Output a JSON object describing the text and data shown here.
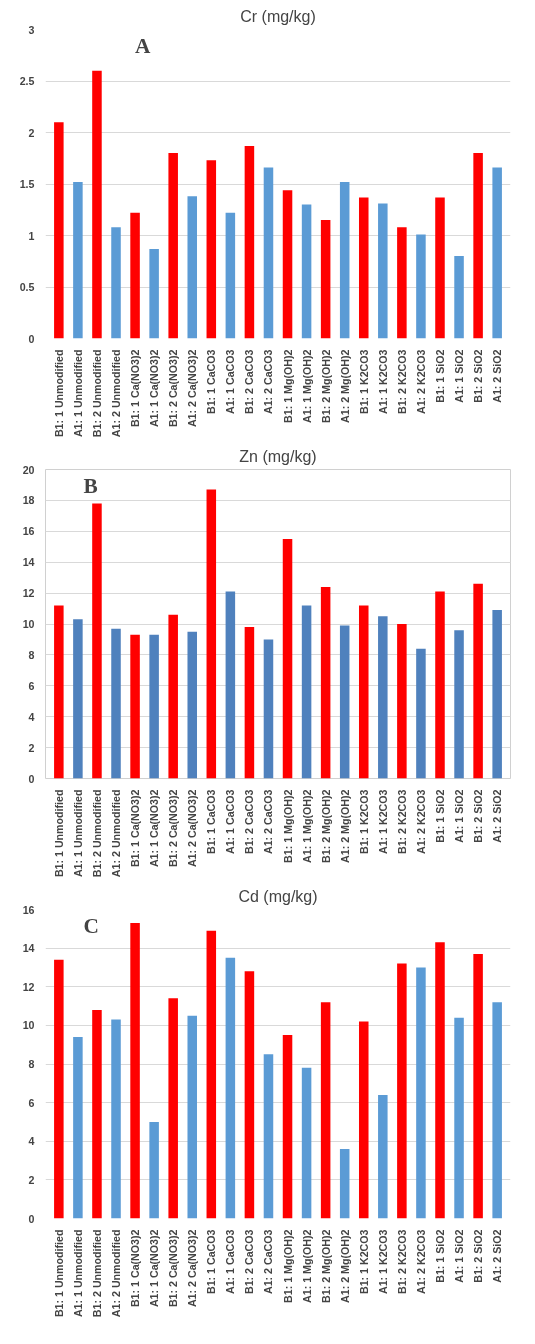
{
  "chart_data": [
    {
      "type": "bar",
      "title": "Cr (mg/kg)",
      "annotations": [
        "A"
      ],
      "categories": [
        "B1: 1 Unmodified",
        "A1: 1 Unmodified",
        "B1: 2 Unmodified",
        "A1: 2 Unmodified",
        "B1: 1 Ca(NO3)2",
        "A1: 1 Ca(NO3)2",
        "B1: 2 Ca(NO3)2",
        "A1: 2 Ca(NO3)2",
        "B1: 1 CaCO3",
        "A1: 1 CaCO3",
        "B1: 2 CaCO3",
        "A1: 2 CaCO3",
        "B1: 1 Mg(OH)2",
        "A1: 1 Mg(OH)2",
        "B1: 2 Mg(OH)2",
        "A1: 2 Mg(OH)2",
        "B1: 1 K2CO3",
        "A1: 1 K2CO3",
        "B1: 2 K2CO3",
        "A1: 2 K2CO3",
        "B1: 1 SiO2",
        "A1: 1 SiO2",
        "B1: 2 SiO2",
        "A1: 2 SiO2"
      ],
      "values": [
        2.1,
        1.52,
        2.6,
        1.08,
        1.22,
        0.87,
        1.8,
        1.38,
        1.73,
        1.22,
        1.87,
        1.66,
        1.44,
        1.3,
        1.15,
        1.52,
        1.37,
        1.31,
        1.08,
        1.01,
        1.37,
        0.8,
        1.8,
        1.66
      ],
      "colors": [
        "#ff0000",
        "#5b9bd5",
        "#ff0000",
        "#5b9bd5",
        "#ff0000",
        "#5b9bd5",
        "#ff0000",
        "#5b9bd5",
        "#ff0000",
        "#5b9bd5",
        "#ff0000",
        "#5b9bd5",
        "#ff0000",
        "#5b9bd5",
        "#ff0000",
        "#5b9bd5",
        "#ff0000",
        "#5b9bd5",
        "#ff0000",
        "#5b9bd5",
        "#ff0000",
        "#5b9bd5",
        "#ff0000",
        "#5b9bd5"
      ],
      "ylim": [
        0,
        3
      ],
      "yticks": [
        0,
        0.5,
        1,
        1.5,
        2,
        2.5,
        3
      ],
      "grid": "y"
    },
    {
      "type": "bar",
      "title": "Zn (mg/kg)",
      "annotations": [
        "B"
      ],
      "categories": [
        "B1: 1 Unmodified",
        "A1: 1 Unmodified",
        "B1: 2 Unmodified",
        "A1: 2 Unmodified",
        "B1: 1 Ca(NO3)2",
        "A1: 1 Ca(NO3)2",
        "B1: 2 Ca(NO3)2",
        "A1: 2 Ca(NO3)2",
        "B1: 1 CaCO3",
        "A1: 1 CaCO3",
        "B1: 2 CaCO3",
        "A1: 2 CaCO3",
        "B1: 1 Mg(OH)2",
        "A1: 1 Mg(OH)2",
        "B1: 2 Mg(OH)2",
        "A1: 2 Mg(OH)2",
        "B1: 1 K2CO3",
        "A1: 1 K2CO3",
        "B1: 2 K2CO3",
        "A1: 2 K2CO3",
        "B1: 1 SiO2",
        "A1: 1 SiO2",
        "B1: 2 SiO2",
        "A1: 2 SiO2"
      ],
      "values": [
        11.2,
        10.3,
        17.8,
        9.7,
        9.3,
        9.3,
        10.6,
        9.5,
        18.7,
        12.1,
        9.8,
        9.0,
        15.5,
        11.2,
        12.4,
        9.9,
        11.2,
        10.5,
        10.0,
        8.4,
        12.1,
        9.6,
        12.6,
        10.9
      ],
      "colors": [
        "#ff0000",
        "#4f81bd",
        "#ff0000",
        "#4f81bd",
        "#ff0000",
        "#4f81bd",
        "#ff0000",
        "#4f81bd",
        "#ff0000",
        "#4f81bd",
        "#ff0000",
        "#4f81bd",
        "#ff0000",
        "#4f81bd",
        "#ff0000",
        "#4f81bd",
        "#ff0000",
        "#4f81bd",
        "#ff0000",
        "#4f81bd",
        "#ff0000",
        "#4f81bd",
        "#ff0000",
        "#4f81bd"
      ],
      "ylim": [
        0,
        20
      ],
      "yticks": [
        0,
        2,
        4,
        6,
        8,
        10,
        12,
        14,
        16,
        18,
        20
      ],
      "grid": "y"
    },
    {
      "type": "bar",
      "title": "Cd (mg/kg)",
      "annotations": [
        "C"
      ],
      "categories": [
        "B1: 1 Unmodified",
        "A1: 1 Unmodified",
        "B1: 2 Unmodified",
        "A1: 2 Unmodified",
        "B1: 1 Ca(NO3)2",
        "A1: 1 Ca(NO3)2",
        "B1: 2 Ca(NO3)2",
        "A1: 2 Ca(NO3)2",
        "B1: 1 CaCO3",
        "A1: 1 CaCO3",
        "B1: 2 CaCO3",
        "A1: 2 CaCO3",
        "B1: 1 Mg(OH)2",
        "A1: 1 Mg(OH)2",
        "B1: 2 Mg(OH)2",
        "A1: 2 Mg(OH)2",
        "B1: 1 K2CO3",
        "A1: 1 K2CO3",
        "B1: 2 K2CO3",
        "A1: 2 K2CO3",
        "B1: 1 SiO2",
        "A1: 1 SiO2",
        "B1: 2 SiO2",
        "A1: 2 SiO2"
      ],
      "values": [
        13.4,
        9.4,
        10.8,
        10.3,
        15.3,
        5.0,
        11.4,
        10.5,
        14.9,
        13.5,
        12.8,
        8.5,
        9.5,
        7.8,
        11.2,
        3.6,
        10.2,
        6.4,
        13.2,
        13.0,
        14.3,
        10.4,
        13.7,
        11.2
      ],
      "colors": [
        "#ff0000",
        "#5b9bd5",
        "#ff0000",
        "#5b9bd5",
        "#ff0000",
        "#5b9bd5",
        "#ff0000",
        "#5b9bd5",
        "#ff0000",
        "#5b9bd5",
        "#ff0000",
        "#5b9bd5",
        "#ff0000",
        "#5b9bd5",
        "#ff0000",
        "#5b9bd5",
        "#ff0000",
        "#5b9bd5",
        "#ff0000",
        "#5b9bd5",
        "#ff0000",
        "#5b9bd5",
        "#ff0000",
        "#5b9bd5"
      ],
      "ylim": [
        0,
        16
      ],
      "yticks": [
        0,
        2,
        4,
        6,
        8,
        10,
        12,
        14,
        16
      ],
      "grid": "y"
    }
  ]
}
